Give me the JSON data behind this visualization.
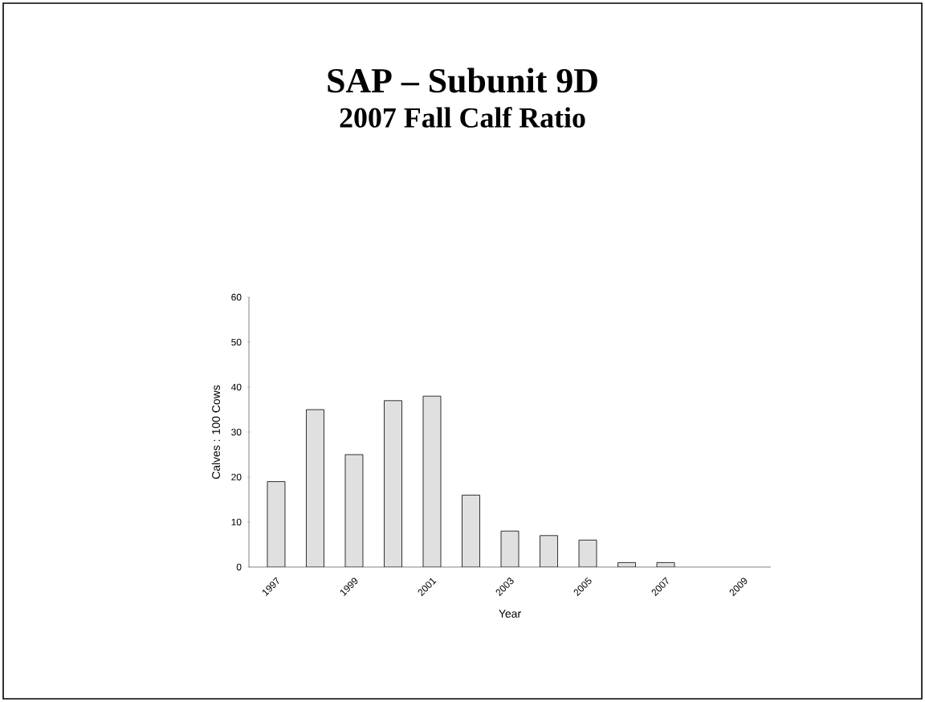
{
  "chart_data": {
    "type": "bar",
    "title": "SAP – Subunit 9D",
    "subtitle": "2007  Fall Calf Ratio",
    "xlabel": "Year",
    "ylabel": "Calves : 100 Cows",
    "categories": [
      "1997",
      null,
      "1999",
      null,
      "2001",
      null,
      "2003",
      null,
      "2005",
      null,
      "2007",
      null,
      "2009"
    ],
    "values": [
      19,
      35,
      25,
      37,
      38,
      16,
      8,
      7,
      6,
      1,
      1,
      null,
      null
    ],
    "color": "#e0e0e0",
    "ylim": [
      0,
      60
    ],
    "yticks": [
      0,
      10,
      20,
      30,
      40,
      50,
      60
    ],
    "grid": false
  }
}
